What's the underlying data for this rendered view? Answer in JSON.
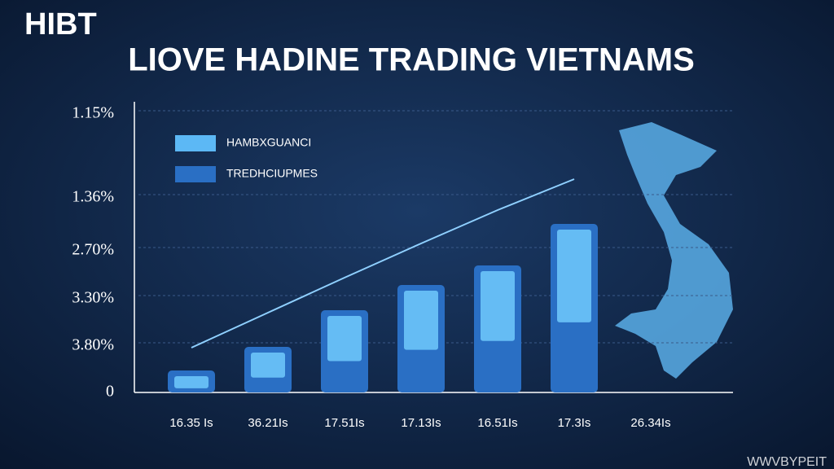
{
  "logo": "HIBT",
  "watermark": "WWVBYPEIT",
  "chart_data": {
    "type": "bar",
    "title": "LIOVE HADINE TRADING VIETNAMS",
    "y_labels": [
      "1.15%",
      "1.36%",
      "2.70%",
      "3.30%",
      "3.80%",
      "0"
    ],
    "categories": [
      "16.35 Is",
      "36.21Is",
      "17.51Is",
      "17.13Is",
      "16.51Is",
      "17.3Is",
      "26.34Is"
    ],
    "ylim": [
      0,
      352
    ],
    "series": [
      {
        "name": "HAMBXGUANCI",
        "color": "#5cb8f5",
        "values": [
          55,
          98,
          141,
          183,
          224,
          262,
          null
        ],
        "kind": "line"
      },
      {
        "name": "TREDHCIUPMES",
        "color": "#2a6fc4",
        "values": [
          27,
          56,
          101,
          132,
          156,
          207,
          null
        ],
        "kind": "bar"
      }
    ]
  }
}
